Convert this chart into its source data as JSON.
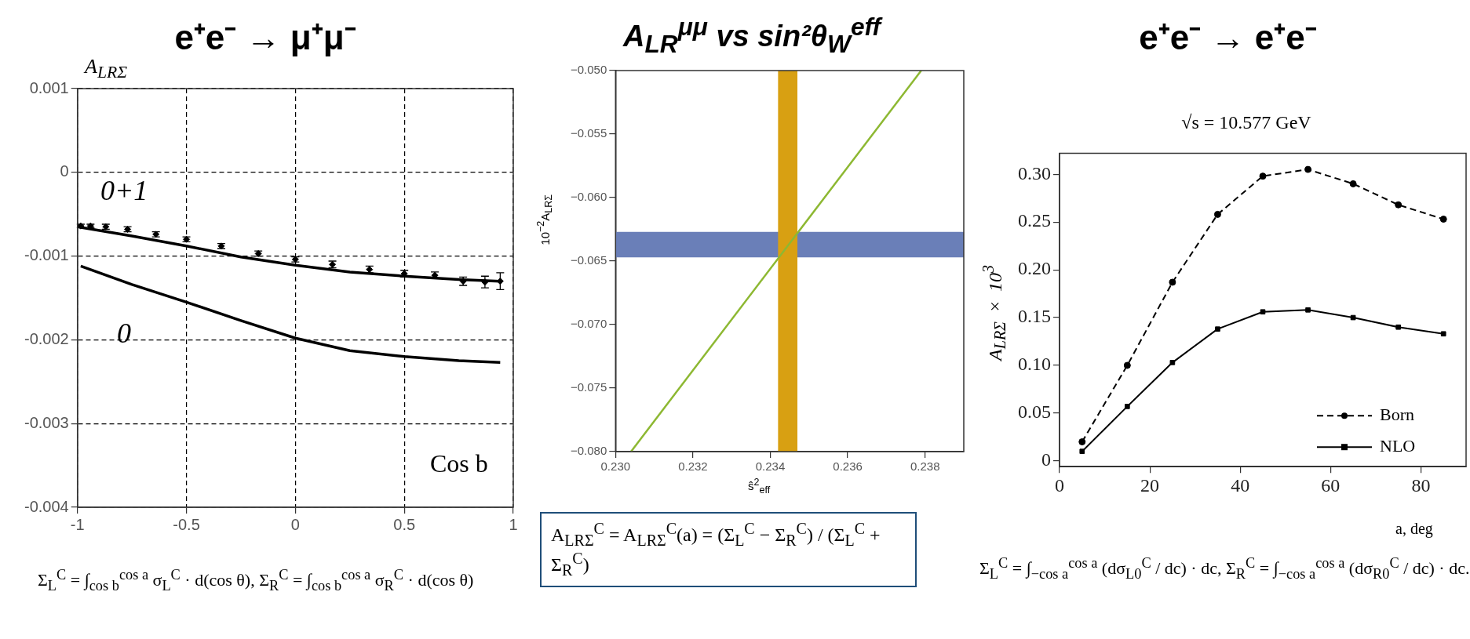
{
  "chart_data": [
    {
      "type": "line",
      "title": "e⁺e⁻ → μ⁺μ⁻",
      "xlabel": "Cos b",
      "ylabel": "A$_{LRΣ}$",
      "xlim": [
        -1,
        1
      ],
      "ylim": [
        -0.004,
        0.001
      ],
      "xticks": [
        -1,
        -0.5,
        0,
        0.5,
        1
      ],
      "yticks": [
        -0.004,
        -0.003,
        -0.002,
        -0.001,
        0,
        0.001
      ],
      "grid": true,
      "legend": false,
      "annotations": [
        "Σ$_{L}$$^{C}$ = ∫$_{cos b}$$^{cos a}$ σ$_{L}$$^{C}$ · d(cos θ),   Σ$_{R}$$^{C}$ = ∫$_{cos b}$$^{cos a}$ σ$_{R}$$^{C}$ · d(cos θ)"
      ],
      "series": [
        {
          "name": "0+1",
          "color": "#000000",
          "marker": "none",
          "x": [
            -1,
            -0.75,
            -0.5,
            -0.25,
            0,
            0.25,
            0.5,
            0.75,
            0.94
          ],
          "values": [
            -0.00065,
            -0.00076,
            -0.00088,
            -0.00101,
            -0.00111,
            -0.00119,
            -0.00124,
            -0.00128,
            -0.0013
          ]
        },
        {
          "name": "0",
          "color": "#000000",
          "marker": "none",
          "x": [
            -0.985,
            -0.75,
            -0.5,
            -0.25,
            0,
            0.25,
            0.5,
            0.75,
            0.94
          ],
          "values": [
            -0.00112,
            -0.00134,
            -0.00155,
            -0.00177,
            -0.00198,
            -0.00213,
            -0.0022,
            -0.00225,
            -0.00227
          ]
        },
        {
          "type": "scatter",
          "color": "#000000",
          "marker": "diamond",
          "x": [
            -0.985,
            -0.94,
            -0.87,
            -0.77,
            -0.64,
            -0.5,
            -0.34,
            -0.17,
            0,
            0.17,
            0.34,
            0.5,
            0.64,
            0.77,
            0.87,
            0.94
          ],
          "values": [
            -0.00064,
            -0.00064,
            -0.00065,
            -0.00068,
            -0.00074,
            -0.0008,
            -0.00088,
            -0.00097,
            -0.00104,
            -0.0011,
            -0.00116,
            -0.00121,
            -0.00123,
            -0.0013,
            -0.00131,
            -0.0013
          ],
          "errors": [
            2e-05,
            2e-05,
            3e-05,
            3e-05,
            3e-05,
            3e-05,
            3e-05,
            3e-05,
            3e-05,
            4e-05,
            4e-05,
            4e-05,
            4e-05,
            5e-05,
            7e-05,
            0.0001
          ]
        }
      ]
    },
    {
      "type": "line",
      "title": "A$_{LR}$$^{μμ}$   vs   sin²θ$_{W}$$^{eff}$",
      "xlabel": "ŝ$^{2}$$_{eff}$",
      "ylabel": "10$^{−2}$A$_{LRΣ}$",
      "xlim": [
        0.23,
        0.239
      ],
      "ylim": [
        -0.08,
        -0.05
      ],
      "xticks": [
        {
          "value": 0.23,
          "label": "0.230"
        },
        {
          "value": 0.232,
          "label": "0.232"
        },
        {
          "value": 0.234,
          "label": "0.234"
        },
        {
          "value": 0.236,
          "label": "0.236"
        },
        {
          "value": 0.238,
          "label": "0.238"
        }
      ],
      "yticks": [
        {
          "value": -0.08,
          "label": "−0.080"
        },
        {
          "value": -0.075,
          "label": "−0.075"
        },
        {
          "value": -0.07,
          "label": "−0.070"
        },
        {
          "value": -0.065,
          "label": "−0.065"
        },
        {
          "value": -0.06,
          "label": "−0.060"
        },
        {
          "value": -0.055,
          "label": "−0.055"
        },
        {
          "value": -0.05,
          "label": "−0.050"
        }
      ],
      "legend": false,
      "bands": [
        {
          "axis": "y",
          "from": -0.0647,
          "to": -0.0627,
          "color": "#6a7fb8"
        },
        {
          "axis": "x",
          "from": 0.2342,
          "to": 0.2347,
          "color": "#d8a012"
        }
      ],
      "annotations": [
        "A$_{LRΣ}$$^{C}$ = A$_{LRΣ}$$^{C}$(a) = (Σ$_{L}$$^{C}$ − Σ$_{R}$$^{C}$) / (Σ$_{L}$$^{C}$ + Σ$_{R}$$^{C}$)"
      ],
      "series": [
        {
          "color": "#8db832",
          "marker": "none",
          "x": [
            0.2304,
            0.2379
          ],
          "values": [
            -0.08,
            -0.05
          ]
        }
      ]
    },
    {
      "type": "line",
      "title": "e⁺e⁻ → e⁺e⁻",
      "subtitle": "√s = 10.577 GeV",
      "xlabel": "a, deg",
      "ylabel": "A$_{LRΣ}$ × 10$^{3}$",
      "xlim": [
        0,
        90
      ],
      "ylim": [
        -0.006,
        0.322
      ],
      "xticks": [
        0,
        20,
        40,
        60,
        80
      ],
      "yticks": [
        {
          "value": 0,
          "label": "0"
        },
        {
          "value": 0.05,
          "label": "0.05"
        },
        {
          "value": 0.1,
          "label": "0.10"
        },
        {
          "value": 0.15,
          "label": "0.15"
        },
        {
          "value": 0.2,
          "label": "0.20"
        },
        {
          "value": 0.25,
          "label": "0.25"
        },
        {
          "value": 0.3,
          "label": "0.30"
        }
      ],
      "legend": "bottom right",
      "x": [
        5,
        15,
        25,
        35,
        45,
        55,
        65,
        75,
        85
      ],
      "annotations": [
        "Σ$_{L}$$^{C}$ = ∫$_{−cos a}$$^{cos a}$ (dσ$_{L0}$$^{C}$ / dc) · dc,   Σ$_{R}$$^{C}$ = ∫$_{−cos a}$$^{cos a}$ (dσ$_{R0}$$^{C}$ / dc) · dc."
      ],
      "series": [
        {
          "name": "Born",
          "color": "#000000",
          "marker": "circle",
          "line_style": "dashed",
          "values": [
            0.02,
            0.1,
            0.187,
            0.258,
            0.298,
            0.305,
            0.29,
            0.268,
            0.253
          ]
        },
        {
          "name": "NLO",
          "color": "#000000",
          "marker": "square",
          "line_style": "solid",
          "values": [
            0.01,
            0.057,
            0.103,
            0.138,
            0.156,
            0.158,
            0.15,
            0.14,
            0.133
          ]
        }
      ]
    }
  ]
}
